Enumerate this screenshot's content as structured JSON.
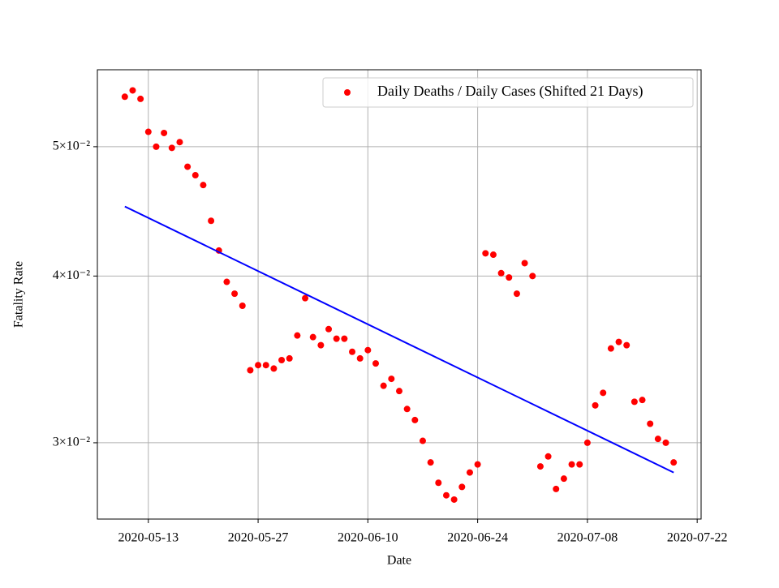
{
  "chart_data": {
    "type": "scatter",
    "xlabel": "Date",
    "ylabel": "Fatality Rate",
    "log_y": true,
    "grid": true,
    "legend": "upper right",
    "xlim": [
      "2020-05-06T12:00:00Z",
      "2020-07-22T12:00:00Z"
    ],
    "xticks": [
      "2020-05-13",
      "2020-05-27",
      "2020-06-10",
      "2020-06-24",
      "2020-07-08",
      "2020-07-22"
    ],
    "ylim": [
      0.0263,
      0.0571
    ],
    "yticks": [
      {
        "value": 0.03,
        "label": "3×10⁻²"
      },
      {
        "value": 0.04,
        "label": "4×10⁻²"
      },
      {
        "value": 0.05,
        "label": "5×10⁻²"
      }
    ],
    "series": [
      {
        "name": "Daily Deaths / Daily Cases (Shifted 21 Days)",
        "color": "#ff0000",
        "type": "scatter",
        "x": [
          "2020-05-10",
          "2020-05-11",
          "2020-05-12",
          "2020-05-13",
          "2020-05-14",
          "2020-05-15",
          "2020-05-16",
          "2020-05-17",
          "2020-05-18",
          "2020-05-19",
          "2020-05-20",
          "2020-05-21",
          "2020-05-22",
          "2020-05-23",
          "2020-05-24",
          "2020-05-25",
          "2020-05-26",
          "2020-05-27",
          "2020-05-28",
          "2020-05-29",
          "2020-05-30",
          "2020-05-31",
          "2020-06-01",
          "2020-06-02",
          "2020-06-03",
          "2020-06-04",
          "2020-06-05",
          "2020-06-06",
          "2020-06-07",
          "2020-06-08",
          "2020-06-09",
          "2020-06-10",
          "2020-06-11",
          "2020-06-12",
          "2020-06-13",
          "2020-06-14",
          "2020-06-15",
          "2020-06-16",
          "2020-06-17",
          "2020-06-18",
          "2020-06-19",
          "2020-06-20",
          "2020-06-21",
          "2020-06-22",
          "2020-06-23",
          "2020-06-24",
          "2020-06-25",
          "2020-06-26",
          "2020-06-27",
          "2020-06-28",
          "2020-06-29",
          "2020-06-30",
          "2020-07-01",
          "2020-07-02",
          "2020-07-03",
          "2020-07-04",
          "2020-07-05",
          "2020-07-06",
          "2020-07-07",
          "2020-07-08",
          "2020-07-09",
          "2020-07-10",
          "2020-07-11",
          "2020-07-12",
          "2020-07-13",
          "2020-07-14",
          "2020-07-15",
          "2020-07-16",
          "2020-07-17",
          "2020-07-18",
          "2020-07-19"
        ],
        "values": [
          0.0545,
          0.0551,
          0.0543,
          0.0513,
          0.05,
          0.0512,
          0.0499,
          0.0504,
          0.0483,
          0.0476,
          0.0468,
          0.044,
          0.0418,
          0.0396,
          0.0388,
          0.038,
          0.034,
          0.0343,
          0.0343,
          0.0341,
          0.0346,
          0.0347,
          0.0361,
          0.0385,
          0.036,
          0.0355,
          0.0365,
          0.0359,
          0.0359,
          0.0351,
          0.0347,
          0.0352,
          0.0344,
          0.0331,
          0.0335,
          0.0328,
          0.0318,
          0.0312,
          0.0301,
          0.029,
          0.028,
          0.0274,
          0.0272,
          0.0278,
          0.0285,
          0.0289,
          0.0416,
          0.0415,
          0.0402,
          0.0399,
          0.0388,
          0.0409,
          0.04,
          0.0288,
          0.0293,
          0.0277,
          0.0282,
          0.0289,
          0.0289,
          0.03,
          0.032,
          0.0327,
          0.0353,
          0.0357,
          0.0355,
          0.0322,
          0.0323,
          0.031,
          0.0302,
          0.03,
          0.029
        ]
      },
      {
        "color": "#0000ff",
        "type": "line",
        "x": [
          "2020-05-10",
          "2020-07-19"
        ],
        "values": [
          0.0451,
          0.0285
        ]
      }
    ]
  }
}
